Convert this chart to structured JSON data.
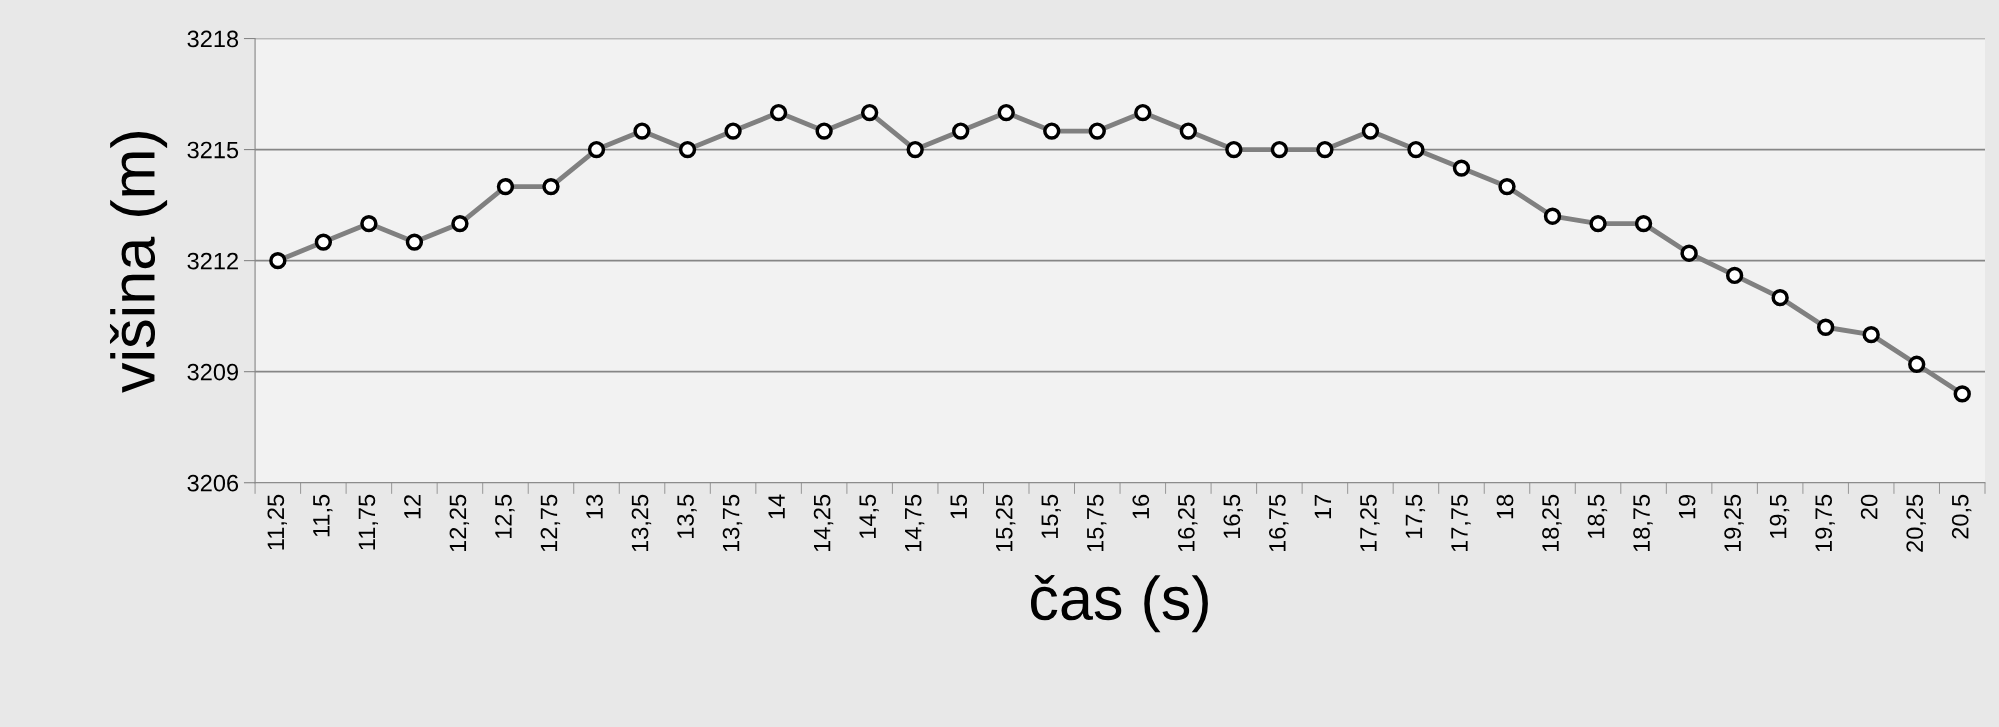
{
  "chart_data": {
    "type": "line",
    "xlabel": "čas (s)",
    "ylabel": "višina (m)",
    "categories": [
      "11,25",
      "11,5",
      "11,75",
      "12",
      "12,25",
      "12,5",
      "12,75",
      "13",
      "13,25",
      "13,5",
      "13,75",
      "14",
      "14,25",
      "14,5",
      "14,75",
      "15",
      "15,25",
      "15,5",
      "15,75",
      "16",
      "16,25",
      "16,5",
      "16,75",
      "17",
      "17,25",
      "17,5",
      "17,75",
      "18",
      "18,25",
      "18,5",
      "18,75",
      "19",
      "19,25",
      "19,5",
      "19,75",
      "20",
      "20,25",
      "20,5"
    ],
    "series": [
      {
        "color": "#808080",
        "values": [
          3212,
          3212.5,
          3213,
          3212.5,
          3213,
          3214,
          3214,
          3215,
          3215.5,
          3215,
          3215.5,
          3216,
          3215.5,
          3216,
          3215,
          3215.5,
          3216,
          3215.5,
          3215.5,
          3216,
          3215.5,
          3215,
          3215,
          3215,
          3215.5,
          3215,
          3214.5,
          3214,
          3213.2,
          3213,
          3213,
          3212.2,
          3211.6,
          3211,
          3210.2,
          3210,
          3209.2,
          3208.4
        ]
      }
    ],
    "ylim": [
      3206,
      3218
    ],
    "yticks": [
      3206,
      3209,
      3212,
      3215,
      3218
    ],
    "grid": "y",
    "marker": "circle",
    "line_style": "solid",
    "legend": false
  }
}
